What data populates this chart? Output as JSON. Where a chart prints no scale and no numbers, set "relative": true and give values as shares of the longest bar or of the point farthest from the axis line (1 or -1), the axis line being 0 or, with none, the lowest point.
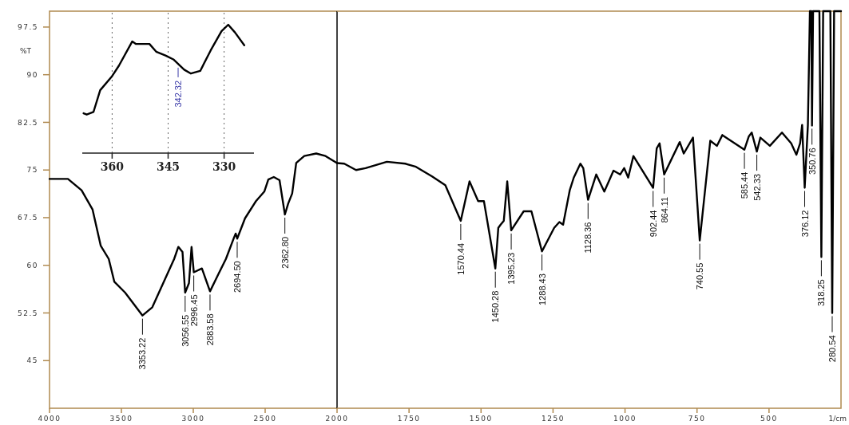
{
  "chart_data": [
    {
      "type": "line",
      "ylabel": "%T",
      "color": "#000000",
      "x": [
        4000,
        3872,
        3777,
        3701,
        3644,
        3588,
        3549,
        3474,
        3353.22,
        3285,
        3209,
        3133,
        3104,
        3075,
        3056.55,
        3030,
        3012,
        2996.45,
        2940,
        2883.58,
        2830,
        2773,
        2716,
        2705,
        2694.5,
        2640,
        2564,
        2506,
        2478,
        2440,
        2400,
        2362.8,
        2340,
        2312,
        2284,
        2228,
        2145,
        2080,
        2000
      ],
      "values": [
        73.6,
        73.6,
        71.8,
        68.8,
        63.1,
        61.0,
        57.4,
        55.7,
        52.1,
        53.4,
        57.2,
        61.0,
        62.9,
        62.1,
        55.7,
        57.2,
        62.9,
        58.9,
        59.5,
        55.9,
        58.4,
        61.0,
        64.4,
        65.0,
        64.2,
        67.4,
        70.1,
        71.6,
        73.5,
        73.9,
        73.4,
        68.0,
        69.7,
        71.3,
        76.1,
        77.2,
        77.6,
        77.2,
        76.1
      ],
      "xlim": [
        4000,
        2000
      ],
      "ylim": [
        37.5,
        100
      ],
      "xticks": [
        4000,
        3500,
        3000,
        2500
      ],
      "yticks": [
        45,
        52.5,
        60,
        67.5,
        75,
        82.5,
        90,
        97.5
      ],
      "annotations": [
        {
          "text": "3353.22",
          "x": 3353.22,
          "y": 52.1
        },
        {
          "text": "3056.55",
          "x": 3056.55,
          "y": 55.7
        },
        {
          "text": "2996.45",
          "x": 2996.45,
          "y": 58.9
        },
        {
          "text": "2883.58",
          "x": 2883.58,
          "y": 55.9
        },
        {
          "text": "2694.50",
          "x": 2694.5,
          "y": 64.2
        },
        {
          "text": "2362.80",
          "x": 2362.8,
          "y": 68.0
        }
      ]
    },
    {
      "type": "line",
      "xlabel": "1/cm",
      "color": "#000000",
      "tick_labels": "x",
      "x": [
        2000,
        1975,
        1934,
        1901,
        1827,
        1763,
        1726,
        1670,
        1624,
        1570.44,
        1540,
        1510,
        1490,
        1450.28,
        1440,
        1432,
        1421,
        1409,
        1395.23,
        1352,
        1325,
        1288.43,
        1246,
        1228,
        1215,
        1192,
        1178,
        1155,
        1145,
        1128.36,
        1100,
        1072,
        1040,
        1017,
        1003,
        989,
        971,
        902.44,
        890,
        880,
        864.11,
        810,
        796,
        764,
        740.55,
        704,
        681,
        662,
        585.44,
        570,
        560,
        542.33,
        530,
        497,
        455,
        423,
        405,
        392,
        385,
        376.12,
        365,
        358,
        353,
        350.76,
        347,
        325,
        318.25,
        312,
        287,
        280.54,
        274,
        250
      ],
      "values": [
        76.1,
        76.0,
        75.0,
        75.3,
        76.3,
        76.0,
        75.5,
        74.0,
        72.6,
        67.0,
        73.2,
        70.1,
        70.1,
        59.5,
        65.9,
        66.4,
        67.0,
        73.2,
        65.5,
        68.5,
        68.5,
        62.2,
        65.9,
        66.8,
        66.4,
        71.8,
        73.8,
        76.0,
        75.3,
        70.3,
        74.3,
        71.6,
        74.9,
        74.3,
        75.3,
        73.8,
        77.2,
        72.2,
        78.4,
        79.2,
        74.3,
        79.4,
        77.6,
        80.1,
        63.9,
        79.6,
        78.8,
        80.5,
        78.2,
        80.3,
        80.9,
        77.9,
        80.1,
        78.8,
        80.9,
        79.2,
        77.4,
        79.2,
        82.1,
        72.2,
        82.1,
        100,
        100,
        82,
        100,
        100,
        61.3,
        100,
        100,
        52.5,
        100,
        100
      ],
      "xlim": [
        2000,
        250
      ],
      "ylim": [
        37.5,
        100
      ],
      "xticks": [
        2000,
        1750,
        1500,
        1250,
        1000,
        750,
        500
      ],
      "annotations": [
        {
          "text": "1570.44",
          "x": 1570.44,
          "y": 67.0
        },
        {
          "text": "1450.28",
          "x": 1450.28,
          "y": 59.5
        },
        {
          "text": "1395.23",
          "x": 1395.23,
          "y": 65.5
        },
        {
          "text": "1288.43",
          "x": 1288.43,
          "y": 62.2
        },
        {
          "text": "1128.36",
          "x": 1128.36,
          "y": 70.3
        },
        {
          "text": "902.44",
          "x": 902.44,
          "y": 72.2
        },
        {
          "text": "864.11",
          "x": 864.11,
          "y": 74.3
        },
        {
          "text": "740.55",
          "x": 740.55,
          "y": 63.9
        },
        {
          "text": "585.44",
          "x": 585.44,
          "y": 78.2
        },
        {
          "text": "542.33",
          "x": 542.33,
          "y": 77.9
        },
        {
          "text": "376.12",
          "x": 376.12,
          "y": 72.2
        },
        {
          "text": "350.76",
          "x": 350.76,
          "y": 82
        },
        {
          "text": "318.25",
          "x": 318.25,
          "y": 61.3
        },
        {
          "text": "280.54",
          "x": 280.54,
          "y": 52.5
        }
      ]
    },
    {
      "type": "line",
      "color": "#000000",
      "relative": true,
      "grid": "x",
      "x": [
        367.65,
        366.8,
        365.0,
        363.2,
        360,
        358.2,
        354.6,
        353.6,
        350.0,
        348.2,
        345.7,
        343.6,
        340.7,
        338.9,
        336.4,
        333.6,
        330.7,
        328.9,
        327.1,
        324.6
      ],
      "values": [
        0.31,
        0.3,
        0.32,
        0.49,
        0.6,
        0.68,
        0.87,
        0.85,
        0.85,
        0.79,
        0.76,
        0.73,
        0.65,
        0.62,
        0.64,
        0.8,
        0.95,
        1.0,
        0.94,
        0.84
      ],
      "xlim": [
        368,
        322
      ],
      "xticks": [
        360,
        345,
        330
      ],
      "annotations": [
        {
          "text": "342.32",
          "x": 342.32,
          "y": 0.69
        }
      ]
    }
  ]
}
